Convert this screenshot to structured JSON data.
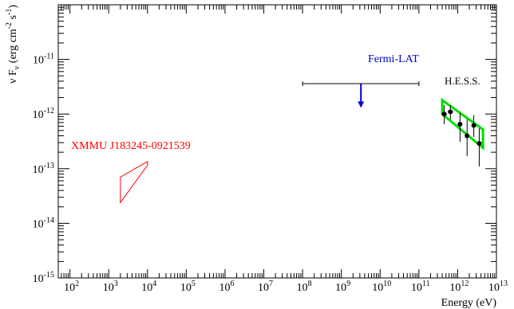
{
  "chart_data": {
    "type": "scatter",
    "scale": {
      "x": "log",
      "y": "log"
    },
    "xlim": [
      50,
      10000000000000
    ],
    "ylim": [
      1e-15,
      1e-10
    ],
    "xlabel": "Energy  (eV)",
    "ylabel": {
      "prefix": "ν F",
      "prefix_sub": "ν",
      "units_open": " (erg cm",
      "exp1": "-2",
      "middle": " s",
      "exp2": "-1",
      "close": ")"
    },
    "xticks": [
      {
        "value": 100,
        "base": "10",
        "exp": "2"
      },
      {
        "value": 1000,
        "base": "10",
        "exp": "3"
      },
      {
        "value": 10000,
        "base": "10",
        "exp": "4"
      },
      {
        "value": 100000,
        "base": "10",
        "exp": "5"
      },
      {
        "value": 1000000,
        "base": "10",
        "exp": "6"
      },
      {
        "value": 10000000,
        "base": "10",
        "exp": "7"
      },
      {
        "value": 100000000,
        "base": "10",
        "exp": "8"
      },
      {
        "value": 1000000000,
        "base": "10",
        "exp": "9"
      },
      {
        "value": 10000000000,
        "base": "10",
        "exp": "10"
      },
      {
        "value": 100000000000,
        "base": "10",
        "exp": "11"
      },
      {
        "value": 1000000000000,
        "base": "10",
        "exp": "12"
      },
      {
        "value": 10000000000000,
        "base": "10",
        "exp": "13"
      }
    ],
    "yticks": [
      {
        "value": 1e-15,
        "base": "10",
        "exp": "-15"
      },
      {
        "value": 1e-14,
        "base": "10",
        "exp": "-14"
      },
      {
        "value": 1e-13,
        "base": "10",
        "exp": "-13"
      },
      {
        "value": 1e-12,
        "base": "10",
        "exp": "-12"
      },
      {
        "value": 1e-11,
        "base": "10",
        "exp": "-11"
      }
    ],
    "series": [
      {
        "name": "H.E.S.S.",
        "color": "#000000",
        "marker": "filled-circle",
        "points": [
          {
            "x": 450000000000,
            "y": 1e-12,
            "ylo": 6.5e-13,
            "yhi": 1.45e-12,
            "xlo": 380000000000,
            "xhi": 530000000000
          },
          {
            "x": 650000000000,
            "y": 1.1e-12,
            "ylo": 8e-13,
            "yhi": 1.45e-12,
            "xlo": 550000000000,
            "xhi": 770000000000
          },
          {
            "x": 1150000000000,
            "y": 6.5e-13,
            "ylo": 3.1e-13,
            "yhi": 1.05e-12,
            "xlo": 1000000000000,
            "xhi": 1300000000000
          },
          {
            "x": 1750000000000,
            "y": 4e-13,
            "ylo": 1.7e-13,
            "yhi": 8e-13,
            "xlo": 1550000000000,
            "xhi": 1950000000000
          },
          {
            "x": 2600000000000,
            "y": 6.2e-13,
            "ylo": 3.8e-13,
            "yhi": 9.5e-13,
            "xlo": 2300000000000,
            "xhi": 2900000000000
          },
          {
            "x": 3600000000000,
            "y": 2.9e-13,
            "ylo": 1.1e-13,
            "yhi": 5.5e-13,
            "xlo": 3200000000000,
            "xhi": 4000000000000
          }
        ]
      },
      {
        "name": "Fermi-LAT",
        "color": "#0000cc",
        "type": "upper-limit",
        "x": 3200000000,
        "xlo": 100000000,
        "xhi": 100000000000,
        "y": 3.6e-12,
        "arrow_to": 1.3e-12
      },
      {
        "name": "XMMU J183245-0921539",
        "color": "#ff0000",
        "type": "bowtie",
        "x": [
          2000,
          10000
        ],
        "upper": [
          7e-14,
          1.35e-13
        ],
        "lower": [
          2.4e-14,
          1.15e-13
        ]
      }
    ],
    "bowties": [
      {
        "name": "H.E.S.S. spectrum",
        "color": "#00dd00",
        "x": [
          400000000000,
          4500000000000
        ],
        "upper": [
          1.8e-12,
          5.2e-13
        ],
        "lower": [
          1e-12,
          2.4e-13
        ]
      }
    ],
    "labels": [
      {
        "text": "XMMU J183245-0921539",
        "color": "#ff0000"
      },
      {
        "text": "Fermi-LAT",
        "color": "#0000cc"
      },
      {
        "text": "H.E.S.S.",
        "color": "#000000"
      }
    ]
  }
}
